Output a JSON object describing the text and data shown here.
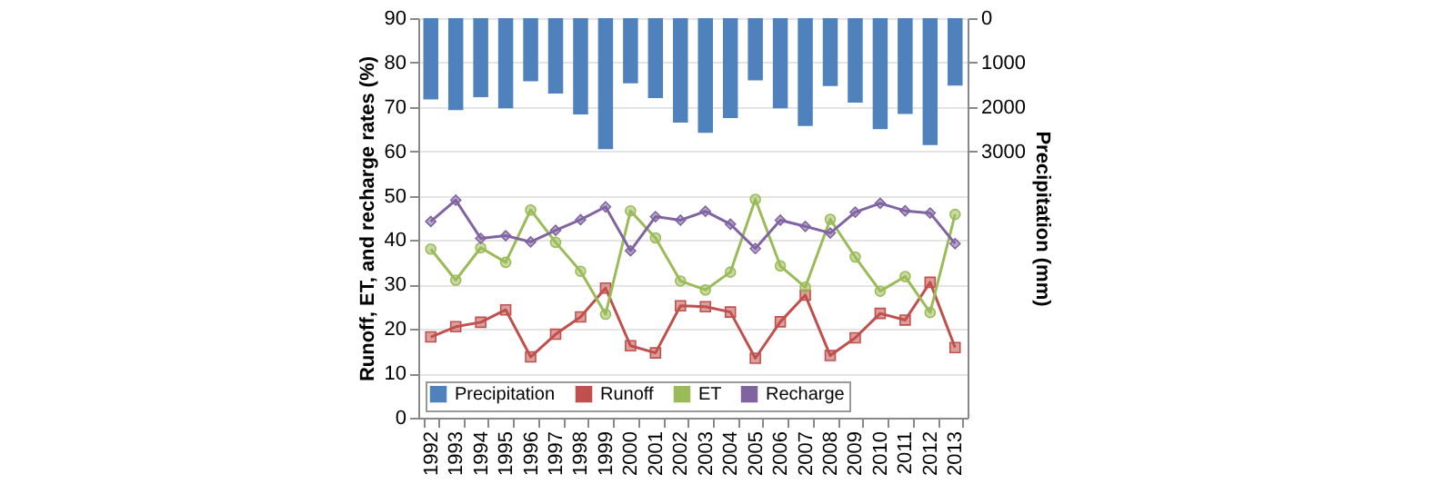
{
  "chart_data": {
    "type": "line",
    "ylabel": "Runoff, ET, and recharge rates (%)",
    "y2label": "Precipitation (mm)",
    "categories": [
      "1992",
      "1993",
      "1994",
      "1995",
      "1996",
      "1997",
      "1998",
      "1999",
      "2000",
      "2001",
      "2002",
      "2003",
      "2004",
      "2005",
      "2006",
      "2007",
      "2008",
      "2009",
      "2010",
      "2011",
      "2012",
      "2013"
    ],
    "series": [
      {
        "name": "Precipitation",
        "type": "bar",
        "axis": "y2",
        "color": "#4f81bd",
        "values": [
          1830,
          2070,
          1780,
          2030,
          1420,
          1700,
          2170,
          2950,
          1470,
          1800,
          2350,
          2580,
          2250,
          1400,
          2030,
          2430,
          1530,
          1900,
          2500,
          2160,
          2860,
          1520
        ]
      },
      {
        "name": "Runoff",
        "color": "#c0504d",
        "marker": "square",
        "values": [
          18.2,
          20.5,
          21.5,
          24.3,
          13.7,
          18.8,
          22.7,
          29.2,
          16.2,
          14.6,
          25.2,
          25,
          23.8,
          13.4,
          21.6,
          27.6,
          14,
          18,
          23.5,
          22,
          30.5,
          15.8
        ]
      },
      {
        "name": "ET",
        "color": "#9bbb59",
        "marker": "circle",
        "values": [
          38,
          31,
          38.3,
          35,
          46.8,
          39.5,
          33,
          23.3,
          46.6,
          40.5,
          30.8,
          28.8,
          32.8,
          49.2,
          34.2,
          29.4,
          44.7,
          36.2,
          28.5,
          31.8,
          23.7,
          45.8
        ]
      },
      {
        "name": "Recharge",
        "color": "#8064a2",
        "marker": "diamond",
        "values": [
          44.2,
          49,
          40.4,
          41,
          39.6,
          42.2,
          44.6,
          47.5,
          37.6,
          45.3,
          44.5,
          46.5,
          43.6,
          38.1,
          44.5,
          43.1,
          41.6,
          46.3,
          48.3,
          46.6,
          46.1,
          39.2
        ]
      }
    ],
    "ylim": [
      0,
      90
    ],
    "yticks": [
      0,
      10,
      20,
      30,
      40,
      50,
      60,
      70,
      80,
      90
    ],
    "y2lim": [
      9000,
      0
    ],
    "y2ticks": [
      0,
      1000,
      2000,
      3000
    ],
    "grid": "y",
    "legend": "bottom left"
  }
}
